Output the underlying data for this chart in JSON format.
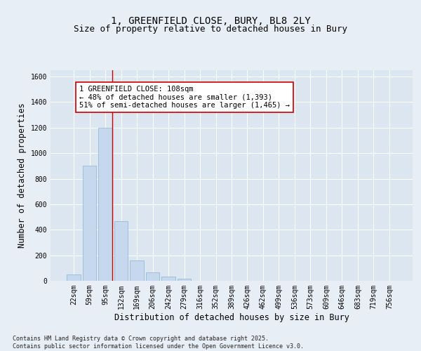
{
  "title_line1": "1, GREENFIELD CLOSE, BURY, BL8 2LY",
  "title_line2": "Size of property relative to detached houses in Bury",
  "xlabel": "Distribution of detached houses by size in Bury",
  "ylabel": "Number of detached properties",
  "categories": [
    "22sqm",
    "59sqm",
    "95sqm",
    "132sqm",
    "169sqm",
    "206sqm",
    "242sqm",
    "279sqm",
    "316sqm",
    "352sqm",
    "389sqm",
    "426sqm",
    "462sqm",
    "499sqm",
    "536sqm",
    "573sqm",
    "609sqm",
    "646sqm",
    "683sqm",
    "719sqm",
    "756sqm"
  ],
  "values": [
    50,
    900,
    1200,
    470,
    160,
    65,
    35,
    15,
    0,
    0,
    0,
    0,
    0,
    0,
    0,
    0,
    0,
    0,
    0,
    0,
    0
  ],
  "bar_color": "#c5d8ee",
  "bar_edge_color": "#8ab4d4",
  "vline_x": 2.43,
  "vline_color": "#cc0000",
  "annotation_text": "1 GREENFIELD CLOSE: 108sqm\n← 48% of detached houses are smaller (1,393)\n51% of semi-detached houses are larger (1,465) →",
  "annotation_box_color": "#ffffff",
  "annotation_box_edge": "#cc0000",
  "ylim": [
    0,
    1650
  ],
  "yticks": [
    0,
    200,
    400,
    600,
    800,
    1000,
    1200,
    1400,
    1600
  ],
  "background_color": "#e8eef5",
  "plot_bg_color": "#dce6f0",
  "footer_text": "Contains HM Land Registry data © Crown copyright and database right 2025.\nContains public sector information licensed under the Open Government Licence v3.0.",
  "title_fontsize": 10,
  "subtitle_fontsize": 9,
  "tick_fontsize": 7,
  "label_fontsize": 8.5,
  "ann_fontsize": 7.5
}
